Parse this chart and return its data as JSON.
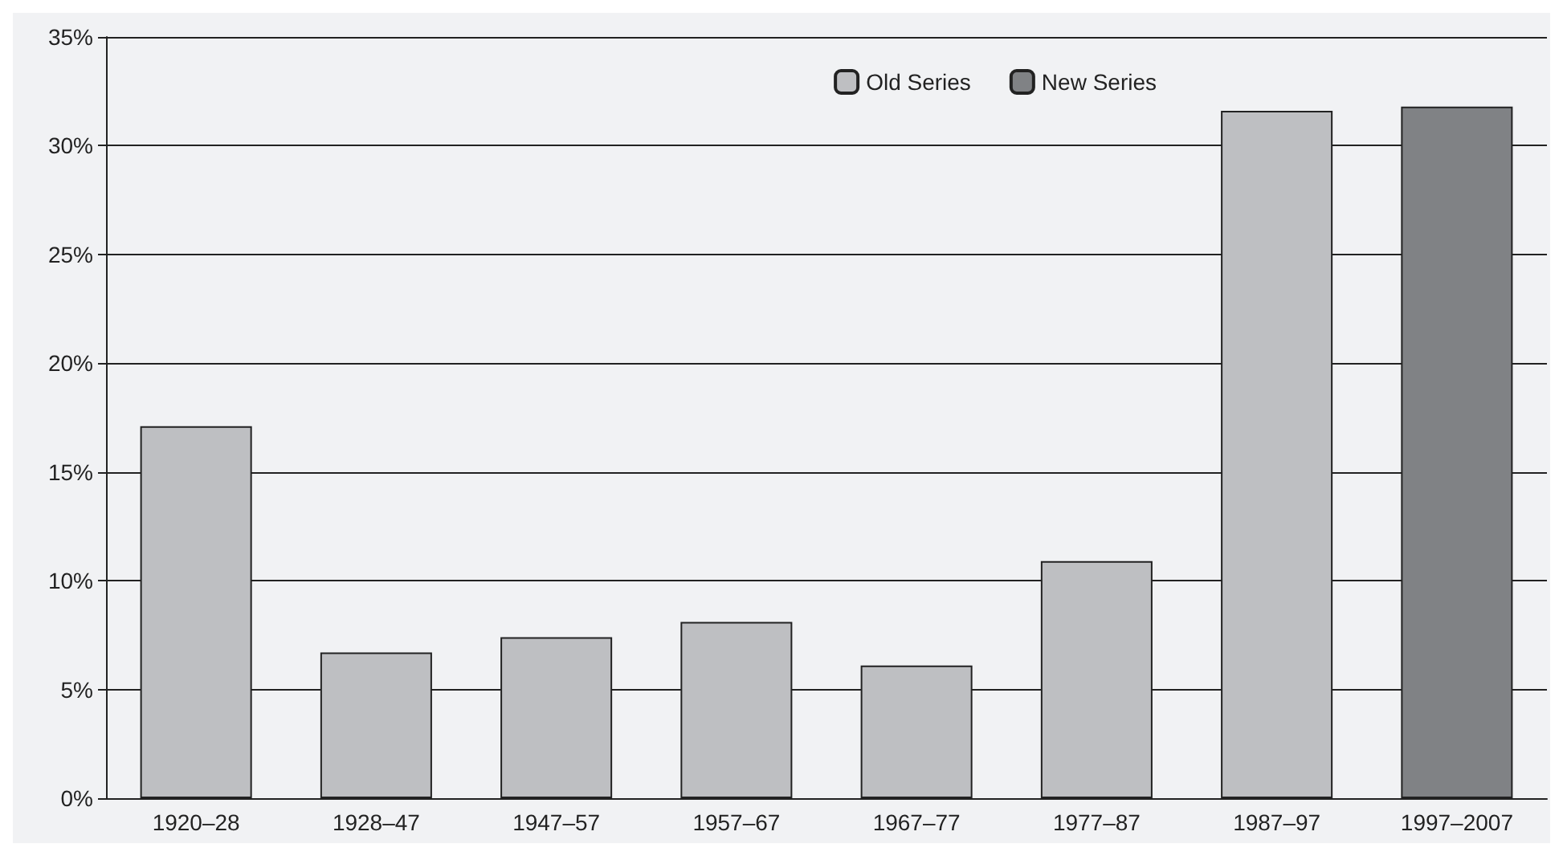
{
  "chart_data": {
    "type": "bar",
    "categories": [
      "1920–28",
      "1928–47",
      "1947–57",
      "1957–67",
      "1967–77",
      "1977–87",
      "1987–97",
      "1997–2007"
    ],
    "series": [
      {
        "name": "Old Series",
        "color": "#bebfc2",
        "values": [
          17.1,
          6.7,
          7.4,
          8.1,
          6.1,
          10.9,
          31.6,
          null
        ]
      },
      {
        "name": "New Series",
        "color": "#808285",
        "values": [
          null,
          null,
          null,
          null,
          null,
          null,
          null,
          31.8
        ]
      }
    ],
    "ylim": [
      0,
      35
    ],
    "yticks": [
      {
        "value": 0,
        "label": "0%"
      },
      {
        "value": 5,
        "label": "5%"
      },
      {
        "value": 10,
        "label": "10%"
      },
      {
        "value": 15,
        "label": "15%"
      },
      {
        "value": 20,
        "label": "20%"
      },
      {
        "value": 25,
        "label": "25%"
      },
      {
        "value": 30,
        "label": "30%"
      },
      {
        "value": 35,
        "label": "35%"
      }
    ],
    "grid": "y",
    "legend": "top right"
  }
}
